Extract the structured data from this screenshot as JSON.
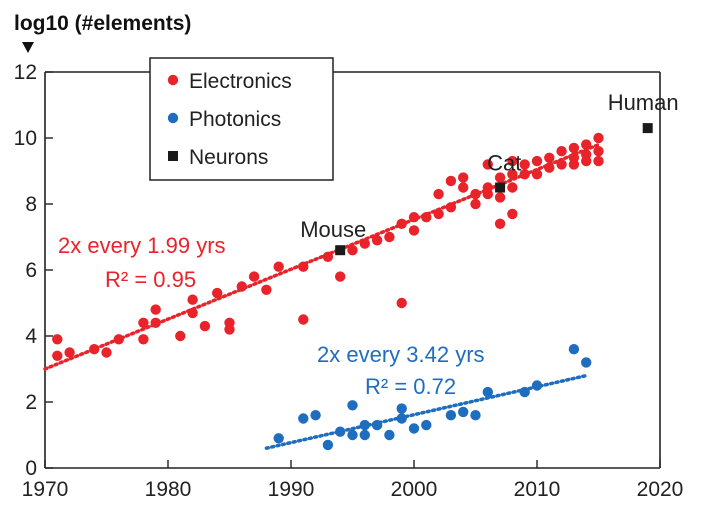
{
  "chart_data": {
    "type": "scatter",
    "ylabel": "log10 (#elements)",
    "xlim": [
      1970,
      2020
    ],
    "ylim": [
      0,
      12
    ],
    "x_ticks": [
      1970,
      1980,
      1990,
      2000,
      2010,
      2020
    ],
    "y_ticks": [
      0,
      2,
      4,
      6,
      8,
      10,
      12
    ],
    "grid": false,
    "legend_position": "top-left",
    "series": [
      {
        "name": "Electronics",
        "marker": "circle",
        "color": "#e8232a",
        "points": [
          [
            1971,
            3.9
          ],
          [
            1971,
            3.4
          ],
          [
            1972,
            3.5
          ],
          [
            1974,
            3.6
          ],
          [
            1975,
            3.5
          ],
          [
            1976,
            3.9
          ],
          [
            1978,
            3.9
          ],
          [
            1978,
            4.4
          ],
          [
            1979,
            4.8
          ],
          [
            1979,
            4.4
          ],
          [
            1981,
            4.0
          ],
          [
            1982,
            4.7
          ],
          [
            1982,
            5.1
          ],
          [
            1983,
            4.3
          ],
          [
            1984,
            5.3
          ],
          [
            1985,
            4.2
          ],
          [
            1985,
            4.4
          ],
          [
            1986,
            5.5
          ],
          [
            1987,
            5.8
          ],
          [
            1988,
            5.4
          ],
          [
            1989,
            6.1
          ],
          [
            1991,
            6.1
          ],
          [
            1991,
            4.5
          ],
          [
            1993,
            6.4
          ],
          [
            1994,
            5.8
          ],
          [
            1995,
            6.6
          ],
          [
            1996,
            6.8
          ],
          [
            1997,
            6.9
          ],
          [
            1998,
            7.0
          ],
          [
            1999,
            7.4
          ],
          [
            1999,
            5.0
          ],
          [
            2000,
            7.2
          ],
          [
            2000,
            7.6
          ],
          [
            2001,
            7.6
          ],
          [
            2002,
            7.7
          ],
          [
            2002,
            8.3
          ],
          [
            2003,
            7.9
          ],
          [
            2003,
            8.7
          ],
          [
            2004,
            8.5
          ],
          [
            2004,
            8.8
          ],
          [
            2005,
            8.3
          ],
          [
            2005,
            8.0
          ],
          [
            2006,
            8.3
          ],
          [
            2006,
            8.5
          ],
          [
            2006,
            9.2
          ],
          [
            2007,
            8.2
          ],
          [
            2007,
            7.4
          ],
          [
            2007,
            8.8
          ],
          [
            2008,
            8.5
          ],
          [
            2008,
            8.9
          ],
          [
            2008,
            9.3
          ],
          [
            2008,
            7.7
          ],
          [
            2009,
            8.9
          ],
          [
            2009,
            9.2
          ],
          [
            2010,
            8.9
          ],
          [
            2010,
            9.3
          ],
          [
            2011,
            9.1
          ],
          [
            2011,
            9.4
          ],
          [
            2012,
            9.2
          ],
          [
            2012,
            9.6
          ],
          [
            2013,
            9.2
          ],
          [
            2013,
            9.7
          ],
          [
            2013,
            9.4
          ],
          [
            2014,
            9.5
          ],
          [
            2014,
            9.8
          ],
          [
            2014,
            9.3
          ],
          [
            2015,
            9.6
          ],
          [
            2015,
            10.0
          ],
          [
            2015,
            9.3
          ]
        ]
      },
      {
        "name": "Photonics",
        "marker": "circle",
        "color": "#1f6dbf",
        "points": [
          [
            1989,
            0.9
          ],
          [
            1991,
            1.5
          ],
          [
            1992,
            1.6
          ],
          [
            1993,
            0.7
          ],
          [
            1994,
            1.1
          ],
          [
            1995,
            1.0
          ],
          [
            1995,
            1.9
          ],
          [
            1996,
            1.3
          ],
          [
            1996,
            1.0
          ],
          [
            1997,
            1.3
          ],
          [
            1998,
            1.0
          ],
          [
            1999,
            1.5
          ],
          [
            1999,
            1.8
          ],
          [
            2000,
            1.2
          ],
          [
            2001,
            1.3
          ],
          [
            2003,
            1.6
          ],
          [
            2004,
            1.7
          ],
          [
            2005,
            1.6
          ],
          [
            2006,
            2.3
          ],
          [
            2009,
            2.3
          ],
          [
            2010,
            2.5
          ],
          [
            2013,
            3.6
          ],
          [
            2014,
            3.2
          ]
        ]
      },
      {
        "name": "Neurons",
        "marker": "square",
        "color": "#1a1a1a",
        "points": [
          [
            1994,
            6.6
          ],
          [
            2007,
            8.5
          ],
          [
            2019,
            10.3
          ]
        ],
        "labels": [
          "Mouse",
          "Cat",
          "Human"
        ]
      }
    ],
    "fit_lines": [
      {
        "series": "Electronics",
        "x": [
          1970,
          2015
        ],
        "y": [
          3.0,
          9.8
        ],
        "color": "#e8232a",
        "annotation_line1": "2x every 1.99 yrs",
        "annotation_line2": "R² = 0.95"
      },
      {
        "series": "Photonics",
        "x": [
          1988,
          2014
        ],
        "y": [
          0.6,
          2.8
        ],
        "color": "#1f6dbf",
        "annotation_line1": "2x every 3.42 yrs",
        "annotation_line2": "R² = 0.72"
      }
    ]
  }
}
